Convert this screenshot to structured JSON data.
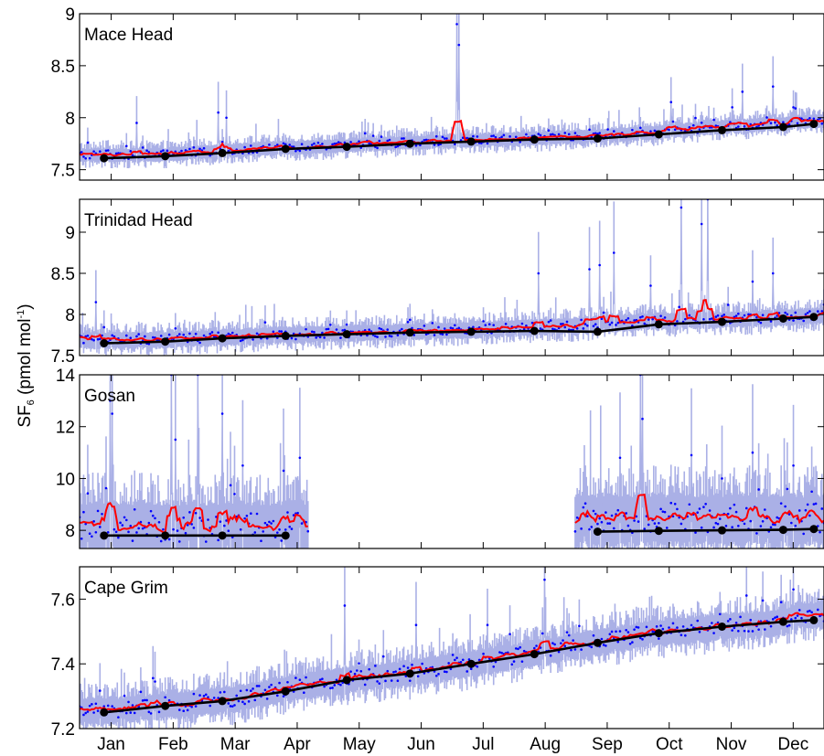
{
  "figure": {
    "ylabel": {
      "species": "SF",
      "species_subscript": "6",
      "unit_open": " (pmol mol",
      "unit_superscript": "-1",
      "unit_close": ")"
    },
    "month_labels": [
      "Jan",
      "Feb",
      "Mar",
      "Apr",
      "May",
      "Jun",
      "Jul",
      "Aug",
      "Sep",
      "Oct",
      "Nov",
      "Dec"
    ]
  },
  "colors": {
    "observations_points": "#0000ff",
    "observation_uncertainty": "#aab0e6",
    "model": "#ff0000",
    "baseline": "#000000"
  },
  "chart_data": [
    {
      "type": "line",
      "site": "Mace Head",
      "ylim": [
        7.4,
        9.0
      ],
      "yticks": [
        7.5,
        8,
        8.5,
        9
      ],
      "ytick_labels": [
        "7.5",
        "8",
        "8.5",
        "9"
      ],
      "xlim": [
        0,
        365
      ],
      "baseline": {
        "x": [
          12,
          42,
          70,
          101,
          131,
          162,
          192,
          223,
          254,
          284,
          315,
          345,
          360
        ],
        "y": [
          7.61,
          7.63,
          7.66,
          7.7,
          7.72,
          7.75,
          7.77,
          7.79,
          7.8,
          7.84,
          7.88,
          7.91,
          7.94
        ]
      },
      "obs_level": [
        [
          0,
          7.64
        ],
        [
          10,
          7.64
        ],
        [
          40,
          7.64
        ],
        [
          70,
          7.68
        ],
        [
          101,
          7.71
        ],
        [
          131,
          7.73
        ],
        [
          162,
          7.76
        ],
        [
          192,
          7.78
        ],
        [
          223,
          7.8
        ],
        [
          254,
          7.82
        ],
        [
          284,
          7.86
        ],
        [
          315,
          7.91
        ],
        [
          345,
          7.94
        ],
        [
          365,
          7.97
        ]
      ],
      "obs_noise": 0.04,
      "spikes": [
        [
          28,
          7.95
        ],
        [
          68,
          8.05
        ],
        [
          72,
          8.0
        ],
        [
          140,
          7.85
        ],
        [
          175,
          7.82
        ],
        [
          185,
          8.9
        ],
        [
          186,
          8.7
        ],
        [
          290,
          8.15
        ],
        [
          320,
          8.1
        ],
        [
          325,
          8.25
        ],
        [
          340,
          8.3
        ],
        [
          350,
          8.1
        ]
      ],
      "segments": [
        [
          0,
          365
        ]
      ]
    },
    {
      "type": "line",
      "site": "Trinidad Head",
      "ylim": [
        7.5,
        9.4
      ],
      "yticks": [
        7.5,
        8,
        8.5,
        9
      ],
      "ytick_labels": [
        "7.5",
        "8",
        "8.5",
        "9"
      ],
      "xlim": [
        0,
        365
      ],
      "baseline": {
        "x": [
          12,
          42,
          70,
          101,
          131,
          162,
          192,
          223,
          254,
          284,
          315,
          345,
          360
        ],
        "y": [
          7.65,
          7.67,
          7.71,
          7.74,
          7.76,
          7.78,
          7.79,
          7.8,
          7.79,
          7.88,
          7.91,
          7.95,
          7.97
        ]
      },
      "obs_level": [
        [
          0,
          7.68
        ],
        [
          40,
          7.69
        ],
        [
          70,
          7.72
        ],
        [
          101,
          7.75
        ],
        [
          131,
          7.77
        ],
        [
          162,
          7.79
        ],
        [
          192,
          7.81
        ],
        [
          223,
          7.84
        ],
        [
          254,
          7.88
        ],
        [
          284,
          7.92
        ],
        [
          315,
          7.93
        ],
        [
          345,
          7.96
        ],
        [
          365,
          7.99
        ]
      ],
      "obs_noise": 0.06,
      "spikes": [
        [
          8,
          8.15
        ],
        [
          225,
          8.5
        ],
        [
          250,
          8.55
        ],
        [
          255,
          8.6
        ],
        [
          262,
          8.75
        ],
        [
          280,
          8.35
        ],
        [
          295,
          9.3
        ],
        [
          305,
          9.1
        ],
        [
          308,
          9.4
        ],
        [
          330,
          8.4
        ],
        [
          340,
          8.5
        ]
      ],
      "segments": [
        [
          0,
          365
        ]
      ]
    },
    {
      "type": "line",
      "site": "Gosan",
      "ylim": [
        7.3,
        14.0
      ],
      "yticks": [
        8,
        10,
        12,
        14
      ],
      "ytick_labels": [
        "8",
        "10",
        "12",
        "14"
      ],
      "xlim": [
        0,
        365
      ],
      "baseline": {
        "x": [
          12,
          42,
          70,
          101,
          254,
          284,
          315,
          345,
          360
        ],
        "y": [
          7.8,
          7.8,
          7.8,
          7.8,
          7.95,
          7.98,
          8.0,
          8.02,
          8.05
        ]
      },
      "obs_level": [
        [
          0,
          8.1
        ],
        [
          110,
          8.1
        ],
        [
          250,
          8.4
        ],
        [
          365,
          8.4
        ]
      ],
      "obs_noise": 0.6,
      "spikes": [
        [
          15,
          13.0
        ],
        [
          16,
          12.5
        ],
        [
          45,
          14.0
        ],
        [
          47,
          11.5
        ],
        [
          58,
          14.0
        ],
        [
          70,
          12.5
        ],
        [
          80,
          10.5
        ],
        [
          100,
          10.3
        ],
        [
          108,
          10.8
        ],
        [
          265,
          10.8
        ],
        [
          275,
          14.0
        ],
        [
          276,
          12.3
        ],
        [
          300,
          10.9
        ],
        [
          315,
          10.0
        ],
        [
          330,
          11.0
        ],
        [
          350,
          10.5
        ]
      ],
      "segments": [
        [
          0,
          112
        ],
        [
          243,
          365
        ]
      ]
    },
    {
      "type": "line",
      "site": "Cape Grim",
      "ylim": [
        7.2,
        7.7
      ],
      "yticks": [
        7.2,
        7.4,
        7.6
      ],
      "ytick_labels": [
        "7.2",
        "7.4",
        "7.6"
      ],
      "xlim": [
        0,
        365
      ],
      "baseline": {
        "x": [
          12,
          42,
          70,
          101,
          131,
          162,
          192,
          223,
          254,
          284,
          315,
          345,
          360
        ],
        "y": [
          7.25,
          7.27,
          7.285,
          7.315,
          7.35,
          7.37,
          7.4,
          7.43,
          7.465,
          7.495,
          7.515,
          7.53,
          7.535
        ]
      },
      "obs_level": [
        [
          0,
          7.25
        ],
        [
          12,
          7.25
        ],
        [
          42,
          7.27
        ],
        [
          70,
          7.285
        ],
        [
          101,
          7.32
        ],
        [
          131,
          7.35
        ],
        [
          162,
          7.37
        ],
        [
          192,
          7.4
        ],
        [
          223,
          7.43
        ],
        [
          254,
          7.465
        ],
        [
          284,
          7.495
        ],
        [
          315,
          7.515
        ],
        [
          345,
          7.525
        ],
        [
          352,
          7.55
        ],
        [
          365,
          7.55
        ]
      ],
      "obs_noise": 0.025,
      "spikes": [
        [
          130,
          7.58
        ],
        [
          165,
          7.52
        ],
        [
          200,
          7.52
        ],
        [
          228,
          7.66
        ],
        [
          350,
          7.63
        ]
      ],
      "segments": [
        [
          0,
          365
        ]
      ]
    }
  ]
}
